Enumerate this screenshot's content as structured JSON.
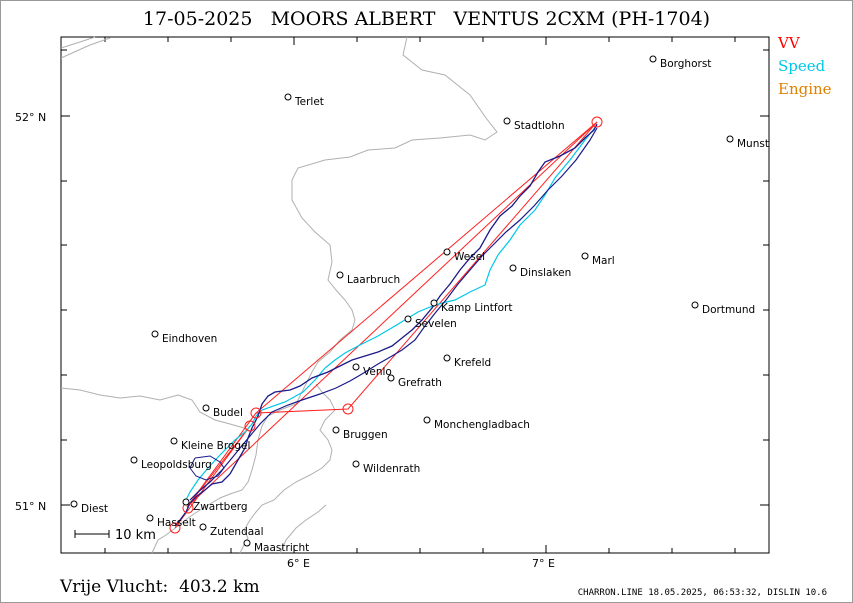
{
  "title": {
    "date": "17-05-2025",
    "pilot": "MOORS ALBERT",
    "glider": "VENTUS 2CXM (PH-1704)"
  },
  "legend": [
    {
      "label": "VV",
      "color": "#ff0000"
    },
    {
      "label": "Speed",
      "color": "#00c8e8"
    },
    {
      "label": "Engine",
      "color": "#e08000"
    }
  ],
  "axes": {
    "lat_labels": [
      "52° N",
      "51° N"
    ],
    "lon_labels": [
      "6° E",
      "7° E"
    ]
  },
  "places": [
    {
      "name": "Borghorst"
    },
    {
      "name": "Terlet"
    },
    {
      "name": "Stadtlohn"
    },
    {
      "name": "Munst"
    },
    {
      "name": "Wesel"
    },
    {
      "name": "Marl"
    },
    {
      "name": "Dinslaken"
    },
    {
      "name": "Laarbruch"
    },
    {
      "name": "Kamp Lintfort"
    },
    {
      "name": "Dortmund"
    },
    {
      "name": "Sevelen"
    },
    {
      "name": "Eindhoven"
    },
    {
      "name": "Krefeld"
    },
    {
      "name": "Venlo"
    },
    {
      "name": "Grefrath"
    },
    {
      "name": "Budel"
    },
    {
      "name": "Monchengladbach"
    },
    {
      "name": "Bruggen"
    },
    {
      "name": "Kleine Brogel"
    },
    {
      "name": "Leopoldsburg"
    },
    {
      "name": "Wildenrath"
    },
    {
      "name": "Diest"
    },
    {
      "name": "Zwartberg"
    },
    {
      "name": "Hasselt"
    },
    {
      "name": "Zutendaal"
    },
    {
      "name": "Maastricht"
    }
  ],
  "scale_label": "10 km",
  "footer": {
    "left": "Vrije Vlucht:  403.2 km",
    "right": "CHARRON.LINE 18.05.2025, 06:53:32, DISLIN 10.6"
  }
}
